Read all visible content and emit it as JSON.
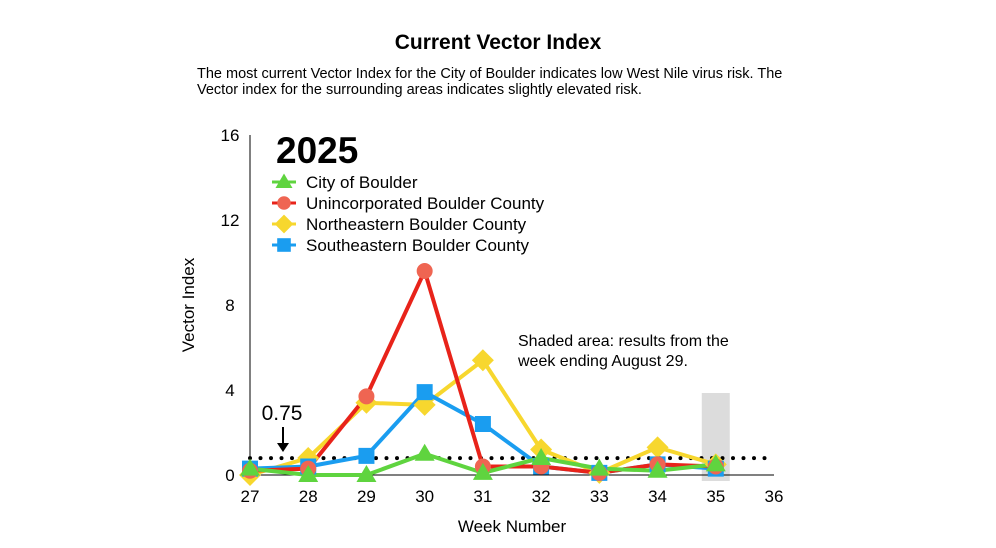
{
  "page": {
    "title": "Current Vector Index",
    "subtitle": "The most current Vector Index for the City of Boulder indicates low West Nile virus risk. The Vector index for the surrounding areas indicates slightly elevated risk."
  },
  "chart_data": {
    "type": "line",
    "year_label": "2025",
    "xlabel": "Week Number",
    "ylabel": "Vector Index",
    "xlim": [
      27,
      36
    ],
    "ylim": [
      0,
      16
    ],
    "x_ticks": [
      "27",
      "28",
      "29",
      "30",
      "31",
      "32",
      "33",
      "34",
      "35",
      "36"
    ],
    "y_ticks": [
      "0",
      "4",
      "8",
      "12",
      "16"
    ],
    "threshold": {
      "value": 0.75,
      "label": "0.75"
    },
    "shaded_week": 35,
    "annotation": [
      "Shaded area: results from the",
      "week ending August 29."
    ],
    "legend_position": "top-left",
    "grid": false,
    "series": [
      {
        "name": "City of Boulder",
        "marker": "triangle",
        "color": "#5fd43f",
        "x": [
          27,
          28,
          29,
          30,
          31,
          32,
          33,
          34,
          35
        ],
        "y": [
          0.3,
          0,
          0,
          1.0,
          0.1,
          0.8,
          0.3,
          0.2,
          0.5
        ]
      },
      {
        "name": "Unincorporated Boulder County",
        "marker": "circle",
        "color": "#e8231a",
        "marker_color": "#ef6552",
        "x": [
          27,
          28,
          29,
          30,
          31,
          32,
          33,
          34,
          35
        ],
        "y": [
          0.2,
          0.3,
          3.7,
          9.6,
          0.4,
          0.4,
          0.1,
          0.5,
          0.4
        ]
      },
      {
        "name": "Northeastern Boulder County",
        "marker": "diamond",
        "color": "#f7d72e",
        "x": [
          27,
          28,
          29,
          30,
          31,
          32,
          33,
          34,
          35
        ],
        "y": [
          0,
          0.8,
          3.4,
          3.3,
          5.4,
          1.2,
          0.1,
          1.3,
          0.5
        ]
      },
      {
        "name": "Southeastern Boulder County",
        "marker": "square",
        "color": "#1a9df0",
        "x": [
          27,
          28,
          29,
          30,
          31,
          32,
          33,
          34,
          35
        ],
        "y": [
          0.3,
          0.4,
          0.9,
          3.9,
          2.4,
          0.4,
          0.1,
          0.5,
          0.3
        ]
      }
    ]
  }
}
